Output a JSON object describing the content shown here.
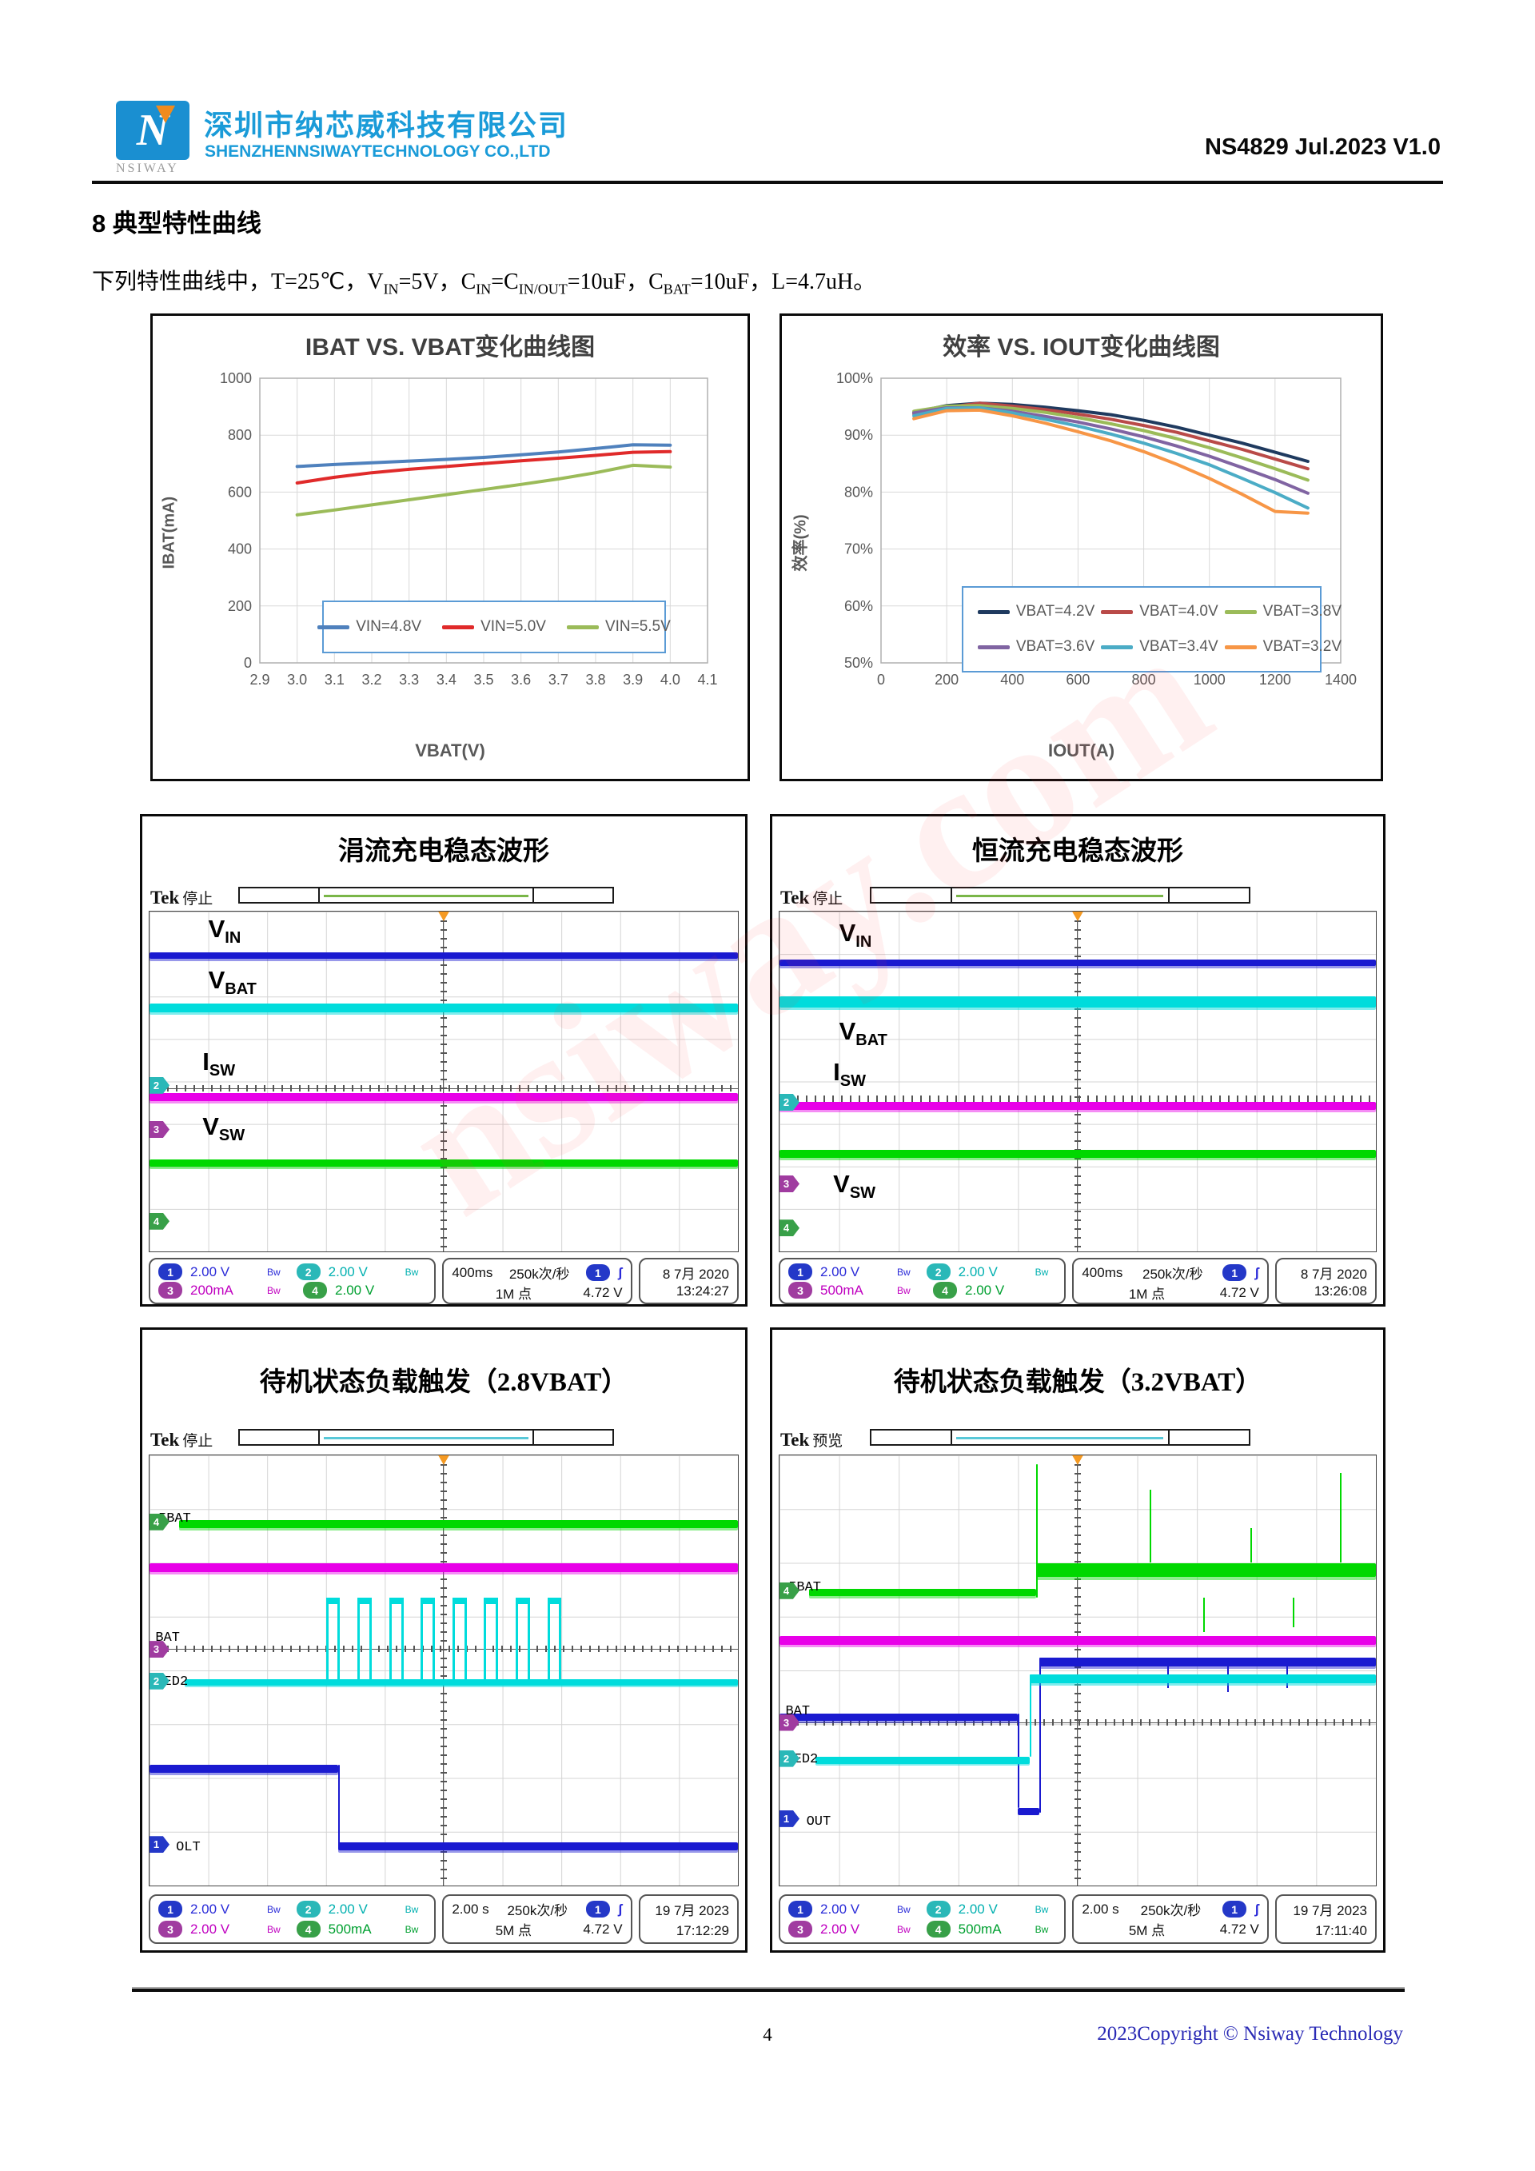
{
  "header": {
    "logo_text": "NSIWAY",
    "logo_letter": "N",
    "company_cn": "深圳市纳芯威科技有限公司",
    "company_en": "SHENZHENNSIWAYTECHNOLOGY CO.,LTD",
    "doc_ref": "NS4829 Jul.2023 V1.0"
  },
  "section": {
    "heading": "8  典型特性曲线"
  },
  "conditions": {
    "segments": [
      {
        "t": "下列特性曲线中，T=25℃，V"
      },
      {
        "s": "IN"
      },
      {
        "t": "=5V，C"
      },
      {
        "s": "IN"
      },
      {
        "t": "=C"
      },
      {
        "s": "IN/OUT"
      },
      {
        "t": "=10uF，C"
      },
      {
        "s": "BAT"
      },
      {
        "t": "=10uF，L=4.7uH。"
      }
    ]
  },
  "chart_data": [
    {
      "type": "line",
      "title": "IBAT VS. VBAT变化曲线图",
      "xlabel": "VBAT(V)",
      "ylabel": "IBAT(mA)",
      "xlim": [
        2.9,
        4.1
      ],
      "ylim": [
        0,
        1000
      ],
      "xticks": [
        2.9,
        3.0,
        3.1,
        3.2,
        3.3,
        3.4,
        3.5,
        3.6,
        3.7,
        3.8,
        3.9,
        4.0,
        4.1
      ],
      "yticks": [
        0,
        200,
        400,
        600,
        800,
        1000
      ],
      "xdec": 1,
      "ysuffix": "",
      "grid": true,
      "legend_position": "inside-bottom",
      "x": [
        3.0,
        3.1,
        3.2,
        3.3,
        3.4,
        3.5,
        3.6,
        3.7,
        3.8,
        3.9,
        4.0
      ],
      "series": [
        {
          "name": "VIN=4.8V",
          "color": "#4f81bd",
          "values": [
            690,
            697,
            703,
            709,
            715,
            722,
            731,
            741,
            753,
            766,
            765
          ]
        },
        {
          "name": "VIN=5.0V",
          "color": "#e02a2a",
          "values": [
            632,
            652,
            668,
            680,
            690,
            700,
            710,
            719,
            729,
            740,
            742
          ]
        },
        {
          "name": "VIN=5.5V",
          "color": "#9bbb59",
          "values": [
            520,
            537,
            555,
            573,
            591,
            609,
            627,
            646,
            668,
            694,
            688
          ]
        }
      ]
    },
    {
      "type": "line",
      "title": "效率 VS. IOUT变化曲线图",
      "xlabel": "IOUT(A)",
      "ylabel": "效率(%)",
      "xlim": [
        0,
        1400
      ],
      "ylim": [
        50,
        100
      ],
      "xticks": [
        0,
        200,
        400,
        600,
        800,
        1000,
        1200,
        1400
      ],
      "yticks": [
        50,
        60,
        70,
        80,
        90,
        100
      ],
      "xdec": 0,
      "ysuffix": "%",
      "grid": true,
      "legend_position": "inside-bottom",
      "x": [
        100,
        200,
        300,
        400,
        500,
        600,
        700,
        800,
        900,
        1000,
        1100,
        1200,
        1300
      ],
      "series": [
        {
          "name": "VBAT=4.2V",
          "color": "#1f3a5f",
          "values": [
            94.0,
            95.2,
            95.6,
            95.4,
            94.9,
            94.3,
            93.6,
            92.6,
            91.4,
            90.0,
            88.6,
            87.0,
            85.4
          ]
        },
        {
          "name": "VBAT=4.0V",
          "color": "#b94a48",
          "values": [
            93.7,
            94.9,
            95.6,
            95.1,
            94.5,
            93.7,
            92.8,
            91.7,
            90.5,
            89.0,
            87.5,
            85.8,
            84.1
          ]
        },
        {
          "name": "VBAT=3.8V",
          "color": "#9bbb59",
          "values": [
            94.2,
            95.1,
            95.2,
            94.7,
            94.0,
            93.1,
            92.0,
            90.8,
            89.4,
            87.8,
            86.0,
            84.1,
            82.1
          ]
        },
        {
          "name": "VBAT=3.6V",
          "color": "#8064a2",
          "values": [
            93.9,
            94.8,
            94.8,
            94.2,
            93.3,
            92.3,
            91.1,
            89.7,
            88.1,
            86.3,
            84.3,
            82.2,
            79.8
          ]
        },
        {
          "name": "VBAT=3.4V",
          "color": "#4bacc6",
          "values": [
            93.4,
            94.7,
            94.8,
            93.9,
            92.8,
            91.6,
            90.2,
            88.6,
            86.8,
            84.8,
            82.4,
            79.9,
            77.2
          ]
        },
        {
          "name": "VBAT=3.2V",
          "color": "#f79646",
          "values": [
            92.9,
            94.3,
            94.4,
            93.4,
            92.1,
            90.6,
            89.0,
            87.1,
            84.9,
            82.4,
            79.6,
            76.6,
            76.3
          ]
        }
      ]
    }
  ],
  "scopes": [
    {
      "title": "涓流充电稳态波形",
      "tek_brand": "Tek",
      "tek_mode": "停止",
      "wave_labels": [
        {
          "main": "V",
          "sub": "IN"
        },
        {
          "main": "V",
          "sub": "BAT"
        },
        {
          "main": "I",
          "sub": "SW"
        },
        {
          "main": "V",
          "sub": "SW"
        }
      ],
      "markers": [
        "2",
        "3",
        "4"
      ],
      "status": {
        "channels": [
          {
            "n": "1",
            "val": "2.00 V",
            "bw": "Bw"
          },
          {
            "n": "2",
            "val": "2.00 V",
            "bw": "Bw"
          },
          {
            "n": "3",
            "val": "200mA",
            "bw": "Bw"
          },
          {
            "n": "4",
            "val": "2.00 V",
            "bw": ""
          }
        ],
        "timebase": "400ms",
        "rate": "250k次/秒",
        "points": "1M 点",
        "trig_ch": "1",
        "trig_slope": "ʃ",
        "trig_val": "4.72 V",
        "date": "8 7月 2020",
        "time": "13:24:27"
      }
    },
    {
      "title": "恒流充电稳态波形",
      "tek_brand": "Tek",
      "tek_mode": "停止",
      "wave_labels": [
        {
          "main": "V",
          "sub": "IN"
        },
        {
          "main": "V",
          "sub": "BAT"
        },
        {
          "main": "I",
          "sub": "SW"
        },
        {
          "main": "V",
          "sub": "SW"
        }
      ],
      "markers": [
        "2",
        "3",
        "4"
      ],
      "status": {
        "channels": [
          {
            "n": "1",
            "val": "2.00 V",
            "bw": "Bw"
          },
          {
            "n": "2",
            "val": "2.00 V",
            "bw": "Bw"
          },
          {
            "n": "3",
            "val": "500mA",
            "bw": "Bw"
          },
          {
            "n": "4",
            "val": "2.00 V",
            "bw": ""
          }
        ],
        "timebase": "400ms",
        "rate": "250k次/秒",
        "points": "1M 点",
        "trig_ch": "1",
        "trig_slope": "ʃ",
        "trig_val": "4.72 V",
        "date": "8 7月 2020",
        "time": "13:26:08"
      }
    },
    {
      "title": "待机状态负载触发（2.8VBAT）",
      "tek_brand": "Tek",
      "tek_mode": "停止",
      "wave_labels_plain": [
        "IBAT",
        "BAT",
        "LED2",
        "OLT"
      ],
      "markers": [
        "4",
        "3",
        "2",
        "1"
      ],
      "status": {
        "channels": [
          {
            "n": "1",
            "val": "2.00 V",
            "bw": "Bw"
          },
          {
            "n": "2",
            "val": "2.00 V",
            "bw": "Bw"
          },
          {
            "n": "3",
            "val": "2.00 V",
            "bw": "Bw"
          },
          {
            "n": "4",
            "val": "500mA",
            "bw": "Bw"
          }
        ],
        "timebase": "2.00 s",
        "rate": "250k次/秒",
        "points": "5M 点",
        "trig_ch": "1",
        "trig_slope": "ʃ",
        "trig_val": "4.72 V",
        "date": "19 7月 2023",
        "time": "17:12:29"
      }
    },
    {
      "title": "待机状态负载触发（3.2VBAT）",
      "tek_brand": "Tek",
      "tek_mode": "预览",
      "wave_labels_plain": [
        "IBAT",
        "BAT",
        "LED2",
        "OUT"
      ],
      "markers": [
        "4",
        "3",
        "2",
        "1"
      ],
      "status": {
        "channels": [
          {
            "n": "1",
            "val": "2.00 V",
            "bw": "Bw"
          },
          {
            "n": "2",
            "val": "2.00 V",
            "bw": "Bw"
          },
          {
            "n": "3",
            "val": "2.00 V",
            "bw": "Bw"
          },
          {
            "n": "4",
            "val": "500mA",
            "bw": "Bw"
          }
        ],
        "timebase": "2.00 s",
        "rate": "250k次/秒",
        "points": "5M 点",
        "trig_ch": "1",
        "trig_slope": "ʃ",
        "trig_val": "4.72 V",
        "date": "19 7月 2023",
        "time": "17:11:40"
      }
    }
  ],
  "colors": {
    "brand_blue": "#1a9bd8",
    "scope_blue": "#1a1ad0",
    "scope_cyan": "#00dcdc",
    "scope_magenta": "#e800e8",
    "scope_green": "#00d800",
    "badge_ch1": "#2438c8",
    "badge_ch2": "#2ab8b8",
    "badge_ch3": "#a03ca0",
    "badge_ch4": "#38a048",
    "posline_green": "#7ab648",
    "posline_cyan": "#58c8d8"
  },
  "watermark": "nsiway.com",
  "footer": {
    "page_number": "4",
    "copyright": "2023Copyright © Nsiway Technology"
  }
}
